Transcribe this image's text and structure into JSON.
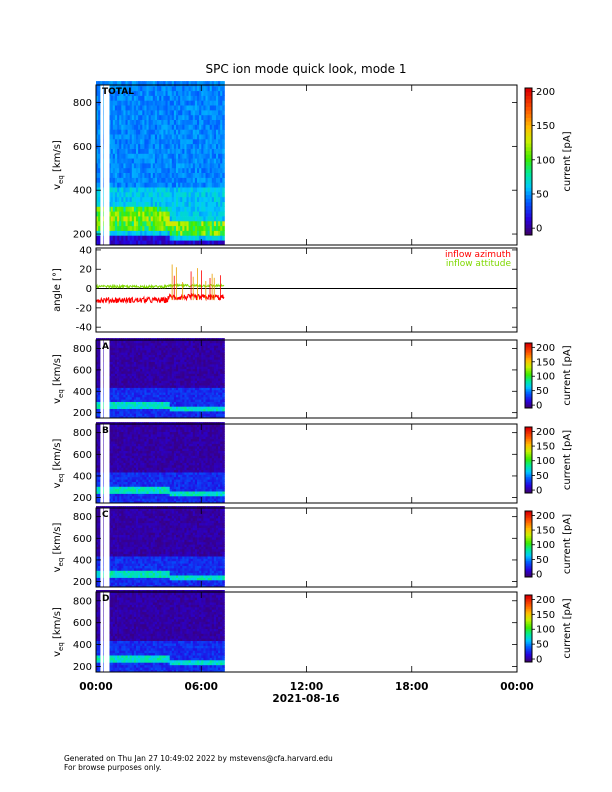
{
  "title": "SPC ion mode quick look, mode 1",
  "footer": {
    "line1": "Generated on Thu Jan 27 10:49:02 2022 by mstevens@cfa.harvard.edu",
    "line2": "For browse purposes only."
  },
  "chart_data": {
    "type": "heatmap",
    "date_label": "2021-08-16",
    "x_ticks": [
      "00:00",
      "06:00",
      "12:00",
      "18:00",
      "00:00"
    ],
    "x_range_hours": [
      0,
      24
    ],
    "data_coverage_hours": [
      0.0,
      7.3
    ],
    "panels": [
      {
        "id": "total",
        "label": "TOTAL",
        "ylabel_main": "v",
        "ylabel_sub": "eq",
        "ylabel_unit": " [km/s]",
        "yticks": [
          200,
          400,
          600,
          800
        ],
        "ylim": [
          150,
          880
        ],
        "colorbar": {
          "label": "current [pA]",
          "ticks": [
            0,
            50,
            100,
            150,
            200
          ],
          "range": [
            -10,
            205
          ]
        }
      },
      {
        "id": "angle",
        "label": "",
        "ylabel": "angle [°]",
        "yticks": [
          -40,
          -20,
          0,
          20,
          40
        ],
        "ylim": [
          -45,
          42
        ],
        "legend": [
          {
            "name": "inflow azimuth",
            "color": "#ff0000"
          },
          {
            "name": "inflow attitude",
            "color": "#7fd800"
          }
        ]
      },
      {
        "id": "A",
        "label": "A",
        "ylabel_main": "v",
        "ylabel_sub": "eq",
        "ylabel_unit": " [km/s]",
        "yticks": [
          200,
          400,
          600,
          800
        ],
        "ylim": [
          150,
          880
        ],
        "colorbar": {
          "label": "current [pA]",
          "ticks": [
            0,
            50,
            100,
            150,
            200
          ],
          "range": [
            -10,
            215
          ]
        }
      },
      {
        "id": "B",
        "label": "B",
        "ylabel_main": "v",
        "ylabel_sub": "eq",
        "ylabel_unit": " [km/s]",
        "yticks": [
          200,
          400,
          600,
          800
        ],
        "ylim": [
          150,
          880
        ],
        "colorbar": {
          "label": "current [pA]",
          "ticks": [
            0,
            50,
            100,
            150,
            200
          ],
          "range": [
            -10,
            215
          ]
        }
      },
      {
        "id": "C",
        "label": "C",
        "ylabel_main": "v",
        "ylabel_sub": "eq",
        "ylabel_unit": " [km/s]",
        "yticks": [
          200,
          400,
          600,
          800
        ],
        "ylim": [
          150,
          880
        ],
        "colorbar": {
          "label": "current [pA]",
          "ticks": [
            0,
            50,
            100,
            150,
            200
          ],
          "range": [
            -10,
            215
          ]
        }
      },
      {
        "id": "D",
        "label": "D",
        "ylabel_main": "v",
        "ylabel_sub": "eq",
        "ylabel_unit": " [km/s]",
        "yticks": [
          200,
          400,
          600,
          800
        ],
        "ylim": [
          150,
          880
        ],
        "colorbar": {
          "label": "current [pA]",
          "ticks": [
            0,
            50,
            100,
            150,
            200
          ],
          "range": [
            -10,
            215
          ]
        }
      }
    ],
    "data_gaps_hours": [
      0.25,
      0.45,
      0.6
    ],
    "speed_transition_hour": 4.1,
    "solar_wind_core_kms": {
      "before_transition": [
        220,
        300
      ],
      "after_transition": [
        200,
        250
      ]
    },
    "angle_series": {
      "inflow_azimuth_deg": {
        "before_transition": -12,
        "after_transition": -9
      },
      "inflow_attitude_deg": {
        "before_transition": 2,
        "after_transition": 3
      }
    }
  }
}
